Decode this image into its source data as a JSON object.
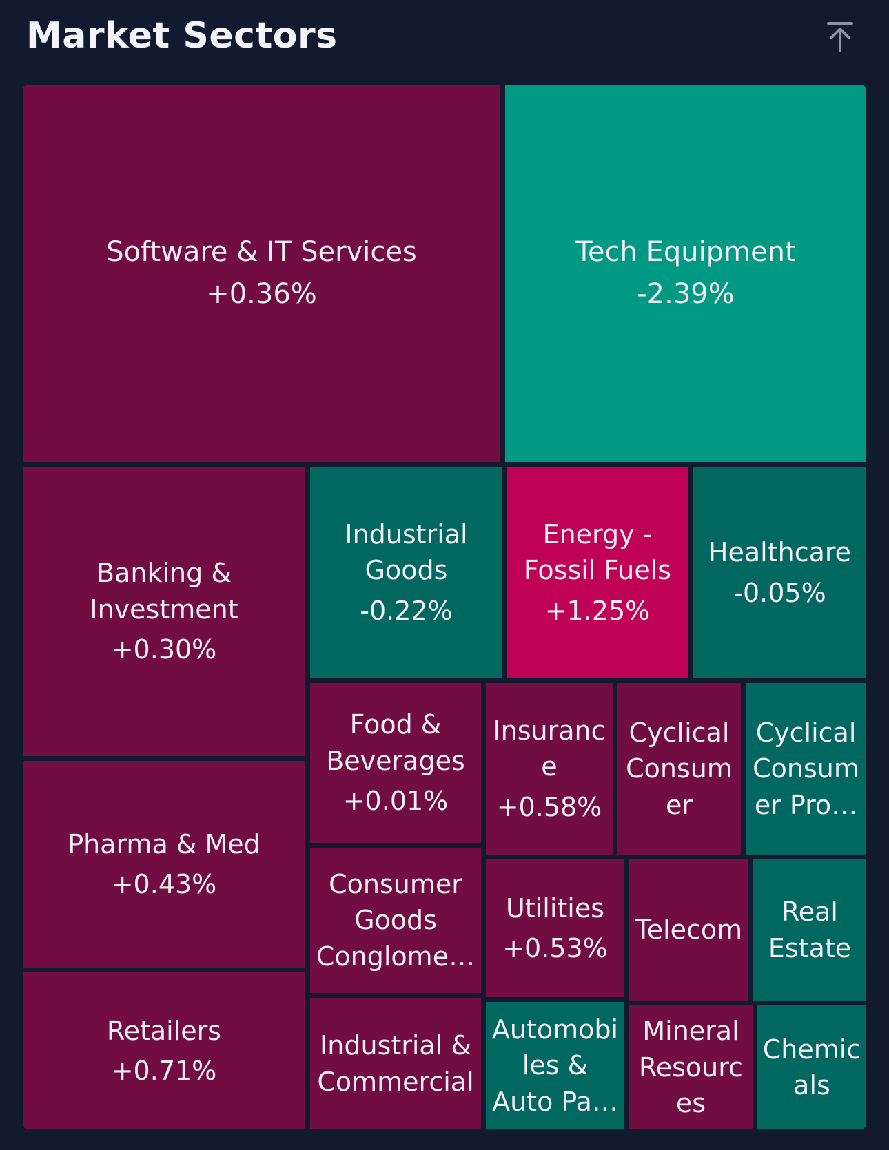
{
  "header": {
    "title": "Market Sectors",
    "collapse_icon": "arrow-up-to-line-icon"
  },
  "colors": {
    "background": "#121a30",
    "gain": "#720d44",
    "gain_strong": "#c00256",
    "loss": "#006860",
    "loss_strong": "#009a84"
  },
  "sectors": [
    {
      "label": "Software & IT Services",
      "change": "+0.36%",
      "color": "#720d44"
    },
    {
      "label": "Tech Equipment",
      "change": "-2.39%",
      "color": "#009a84"
    },
    {
      "label": "Banking & Investment",
      "change": "+0.30%",
      "color": "#720d44"
    },
    {
      "label": "Industrial Goods",
      "change": "-0.22%",
      "color": "#006860"
    },
    {
      "label": "Energy - Fossil Fuels",
      "change": "+1.25%",
      "color": "#c00256"
    },
    {
      "label": "Healthcare",
      "change": "-0.05%",
      "color": "#006860"
    },
    {
      "label": "Pharma & Med",
      "change": "+0.43%",
      "color": "#720d44"
    },
    {
      "label": "Food & Beverages",
      "change": "+0.01%",
      "color": "#720d44"
    },
    {
      "label": "Insuranc e",
      "change": "+0.58%",
      "color": "#720d44"
    },
    {
      "label": "Cyclical Consum er",
      "change": "",
      "color": "#720d44"
    },
    {
      "label": "Cyclical Consum er Pro…",
      "change": "",
      "color": "#006860"
    },
    {
      "label": "Consumer Goods Conglome…",
      "change": "",
      "color": "#720d44"
    },
    {
      "label": "Utilities",
      "change": "+0.53%",
      "color": "#720d44"
    },
    {
      "label": "Telecom",
      "change": "",
      "color": "#720d44"
    },
    {
      "label": "Real Estate",
      "change": "",
      "color": "#006860"
    },
    {
      "label": "Retailers",
      "change": "+0.71%",
      "color": "#720d44"
    },
    {
      "label": "Industrial & Commercial",
      "change": "",
      "color": "#720d44"
    },
    {
      "label": "Automobi les & Auto Pa…",
      "change": "",
      "color": "#006860"
    },
    {
      "label": "Mineral Resourc es",
      "change": "",
      "color": "#720d44"
    },
    {
      "label": "Chemic als",
      "change": "",
      "color": "#006860"
    }
  ]
}
